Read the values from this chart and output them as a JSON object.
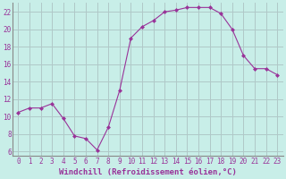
{
  "x": [
    0,
    1,
    2,
    3,
    4,
    5,
    6,
    7,
    8,
    9,
    10,
    11,
    12,
    13,
    14,
    15,
    16,
    17,
    18,
    19,
    20,
    21,
    22,
    23
  ],
  "y": [
    10.5,
    11.0,
    11.0,
    11.5,
    9.8,
    7.8,
    7.5,
    6.2,
    8.8,
    13.0,
    19.0,
    20.3,
    21.0,
    22.0,
    22.2,
    22.5,
    22.5,
    22.5,
    21.8,
    20.0,
    17.0,
    15.5,
    15.5,
    14.8
  ],
  "line_color": "#993399",
  "marker": "D",
  "markersize": 2.0,
  "linewidth": 0.8,
  "bg_color": "#c8eee8",
  "grid_color": "#b0c8c8",
  "xlabel": "Windchill (Refroidissement éolien,°C)",
  "xlabel_color": "#993399",
  "xlabel_fontsize": 6.5,
  "tick_color": "#993399",
  "tick_fontsize": 5.5,
  "ylim": [
    5.5,
    23.0
  ],
  "yticks": [
    6,
    8,
    10,
    12,
    14,
    16,
    18,
    20,
    22
  ],
  "xticks": [
    0,
    1,
    2,
    3,
    4,
    5,
    6,
    7,
    8,
    9,
    10,
    11,
    12,
    13,
    14,
    15,
    16,
    17,
    18,
    19,
    20,
    21,
    22,
    23
  ],
  "xlim": [
    -0.5,
    23.5
  ]
}
